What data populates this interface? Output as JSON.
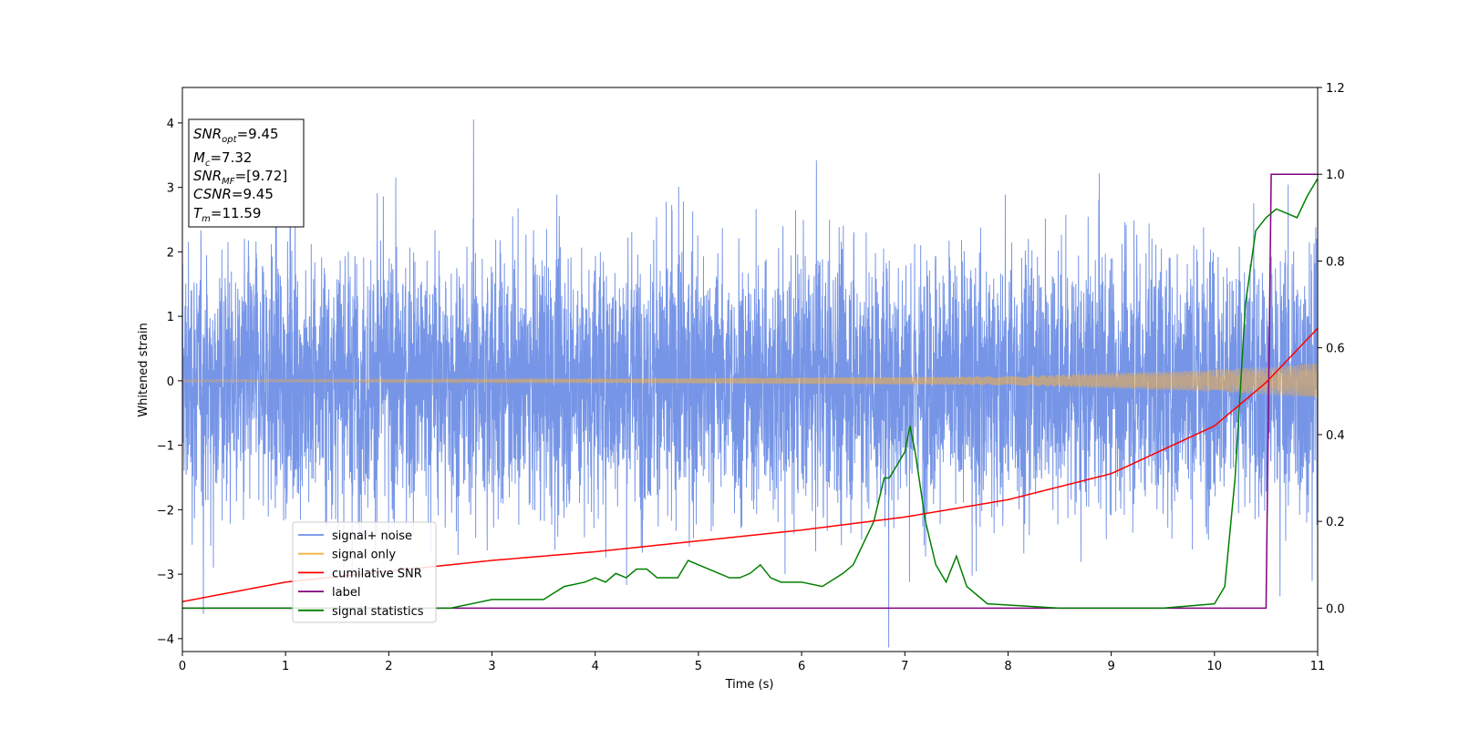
{
  "chart_data": {
    "type": "line",
    "xlabel": "Time (s)",
    "ylabel": "Whitened strain",
    "xlim": [
      0,
      11
    ],
    "ylim_left": [
      -4.2,
      4.55
    ],
    "ylim_right": [
      -0.1,
      1.2
    ],
    "xticks": [
      "0",
      "1",
      "2",
      "3",
      "4",
      "5",
      "6",
      "7",
      "8",
      "9",
      "10",
      "11"
    ],
    "yticks_left": [
      "−4",
      "−3",
      "−2",
      "−1",
      "0",
      "1",
      "2",
      "3",
      "4"
    ],
    "yticks_right": [
      "0.0",
      "0.2",
      "0.4",
      "0.6",
      "0.8",
      "1.0",
      "1.2"
    ],
    "grid": false,
    "legend_position": "lower-left",
    "info_box": {
      "snr_opt": "=9.45",
      "mc": "=7.32",
      "snr_mf": "=[9.72]",
      "csnr": "=9.45",
      "tm": "=11.59"
    },
    "series": [
      {
        "name": "signal+ noise",
        "color": "#6f8fe6",
        "axis": "left",
        "description_values": {
          "noise_sigma": 1.0,
          "x_range": [
            0,
            11
          ]
        }
      },
      {
        "name": "signal only",
        "color": "#f5b041",
        "axis": "left",
        "envelope": {
          "x": [
            0,
            4,
            8,
            10,
            11
          ],
          "amp": [
            0.02,
            0.03,
            0.07,
            0.17,
            0.27
          ]
        }
      },
      {
        "name": "cumilative SNR",
        "color": "#ff0000",
        "axis": "right",
        "x": [
          0,
          1,
          2,
          3,
          4,
          5,
          6,
          7,
          8,
          9,
          10,
          10.5,
          11
        ],
        "y": [
          0.015,
          0.06,
          0.085,
          0.11,
          0.13,
          0.155,
          0.18,
          0.21,
          0.25,
          0.31,
          0.42,
          0.52,
          0.645
        ]
      },
      {
        "name": "label",
        "color": "#800080",
        "axis": "right",
        "x": [
          0,
          10.5,
          10.55,
          11
        ],
        "y": [
          0.0,
          0.0,
          1.0,
          1.0
        ]
      },
      {
        "name": "signal statistics",
        "color": "#008000",
        "axis": "right",
        "x": [
          0,
          2.6,
          3.0,
          3.5,
          3.7,
          3.9,
          4.0,
          4.1,
          4.2,
          4.3,
          4.4,
          4.5,
          4.6,
          4.8,
          4.9,
          5.0,
          5.1,
          5.2,
          5.3,
          5.4,
          5.5,
          5.6,
          5.7,
          5.8,
          5.9,
          6.0,
          6.2,
          6.4,
          6.5,
          6.6,
          6.7,
          6.8,
          6.85,
          6.9,
          7.0,
          7.05,
          7.1,
          7.2,
          7.3,
          7.4,
          7.5,
          7.6,
          7.8,
          8.5,
          9.5,
          10.0,
          10.1,
          10.2,
          10.3,
          10.4,
          10.5,
          10.6,
          10.7,
          10.8,
          10.9,
          11.0
        ],
        "y": [
          0.0,
          0.0,
          0.02,
          0.02,
          0.05,
          0.06,
          0.07,
          0.06,
          0.08,
          0.07,
          0.09,
          0.09,
          0.07,
          0.07,
          0.11,
          0.1,
          0.09,
          0.08,
          0.07,
          0.07,
          0.08,
          0.1,
          0.07,
          0.06,
          0.06,
          0.06,
          0.05,
          0.08,
          0.1,
          0.15,
          0.2,
          0.3,
          0.3,
          0.32,
          0.36,
          0.42,
          0.36,
          0.2,
          0.1,
          0.06,
          0.12,
          0.05,
          0.01,
          0.0,
          0.0,
          0.01,
          0.05,
          0.3,
          0.7,
          0.87,
          0.9,
          0.92,
          0.91,
          0.9,
          0.95,
          0.99
        ]
      }
    ]
  }
}
